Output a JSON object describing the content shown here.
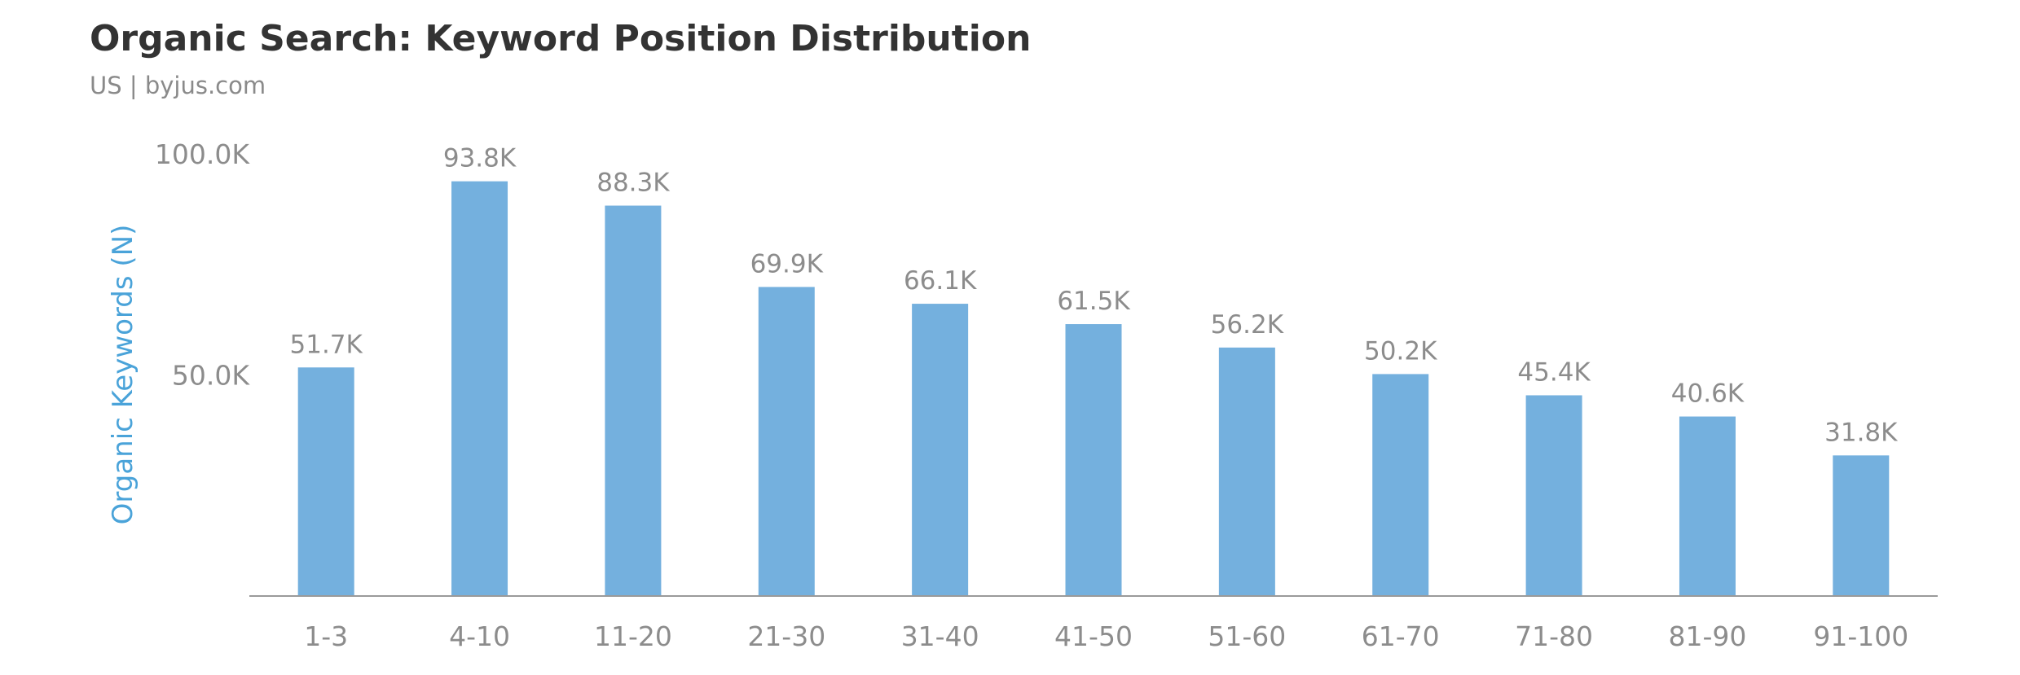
{
  "chart_data": {
    "type": "bar",
    "title": "Organic Search: Keyword Position Distribution",
    "subtitle": "US | byjus.com",
    "xlabel": "",
    "ylabel": "Organic Keywords (N)",
    "categories": [
      "1-3",
      "4-10",
      "11-20",
      "21-30",
      "31-40",
      "41-50",
      "51-60",
      "61-70",
      "71-80",
      "81-90",
      "91-100"
    ],
    "values": [
      51700,
      93800,
      88300,
      69900,
      66100,
      61500,
      56200,
      50200,
      45400,
      40600,
      31800
    ],
    "value_labels": [
      "51.7K",
      "93.8K",
      "88.3K",
      "69.9K",
      "66.1K",
      "61.5K",
      "56.2K",
      "50.2K",
      "45.4K",
      "40.6K",
      "31.8K"
    ],
    "ylim": [
      0,
      100000
    ],
    "yticks": [
      50000,
      100000
    ],
    "ytick_labels": [
      "50.0K",
      "100.0K"
    ],
    "grid": false,
    "legend": "none",
    "bar_color": "#74b0de",
    "axis_color": "#9a9a9a"
  }
}
